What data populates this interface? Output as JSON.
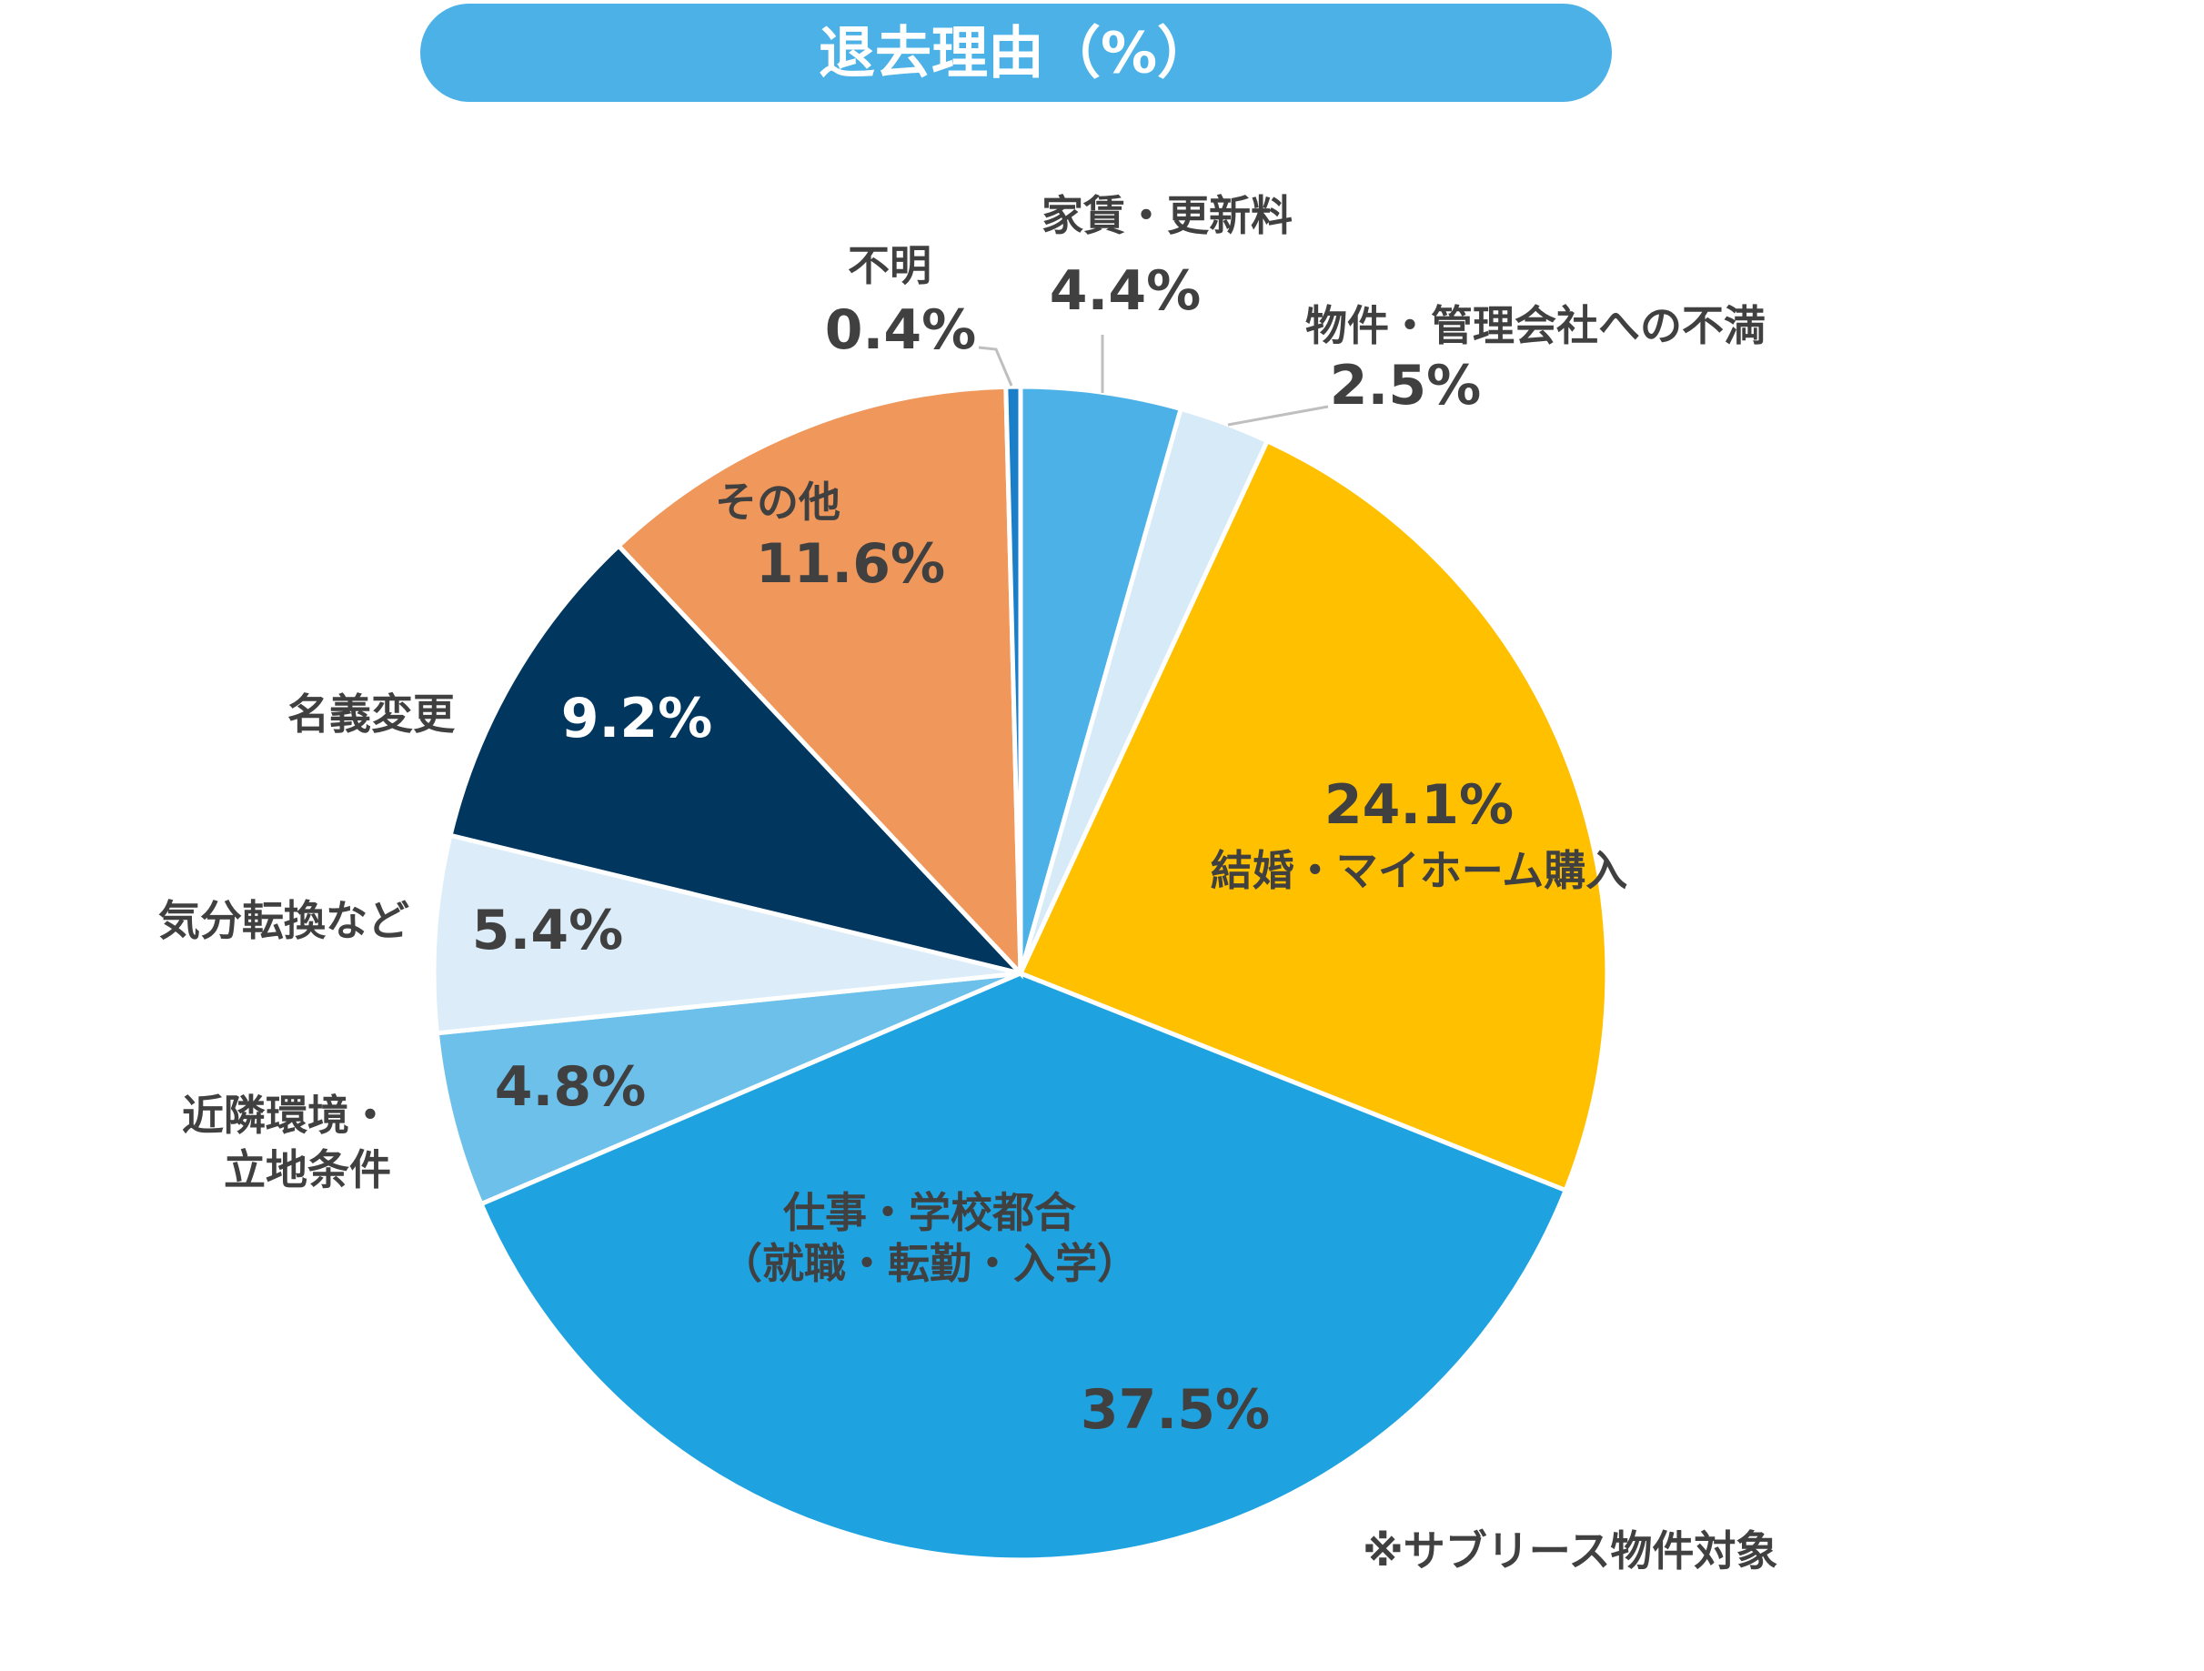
{
  "chart_data": {
    "type": "pie",
    "title": "退去理由（%）",
    "unit": "%",
    "start_angle": "12 o'clock",
    "direction": "clockwise",
    "slices": [
      {
        "category": "家賃・更新料",
        "value": 4.4,
        "value_label": "4.4%",
        "color": "#4bb1e6"
      },
      {
        "category": "物件・管理会社への不満",
        "value": 2.5,
        "value_label": "2.5%",
        "color": "#d6eaf7"
      },
      {
        "category": "結婚・マイホーム購入",
        "value": 24.1,
        "value_label": "24.1%",
        "color": "#ffc000"
      },
      {
        "category": [
          "仕事・学校都合",
          "（就職・転勤・入学）"
        ],
        "value": 37.5,
        "value_label": "37.5%",
        "color": "#1fa2e0"
      },
      {
        "category": [
          "近隣環境・",
          "立地条件"
        ],
        "value": 4.8,
        "value_label": "4.8%",
        "color": "#6cc0ea"
      },
      {
        "category": "気分転換など",
        "value": 5.4,
        "value_label": "5.4%",
        "color": "#dcedf9"
      },
      {
        "category": "名義変更",
        "value": 9.2,
        "value_label": "9.2%",
        "color": "#01365e"
      },
      {
        "category": "その他",
        "value": 11.6,
        "value_label": "11.6%",
        "color": "#f0985c"
      },
      {
        "category": "不明",
        "value": 0.4,
        "value_label": "0.4%",
        "color": "#1a7fc8"
      }
    ],
    "note": "※サブリース物件対象"
  }
}
